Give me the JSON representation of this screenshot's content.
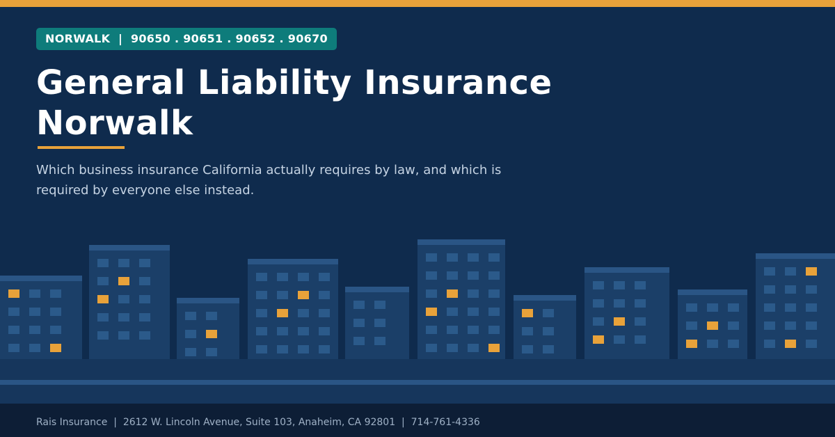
{
  "badge": "NORWALK  |  90650 . 90651 . 90652 . 90670",
  "title": {
    "line1": "General Liability Insurance",
    "line2": "Norwalk"
  },
  "subtitle": "Which business insurance California actually requires by law, and which is required by everyone else instead.",
  "footer": "Rais Insurance  |  2612 W. Lincoln Avenue, Suite 103, Anaheim, CA 92801  |  714-761-4336"
}
